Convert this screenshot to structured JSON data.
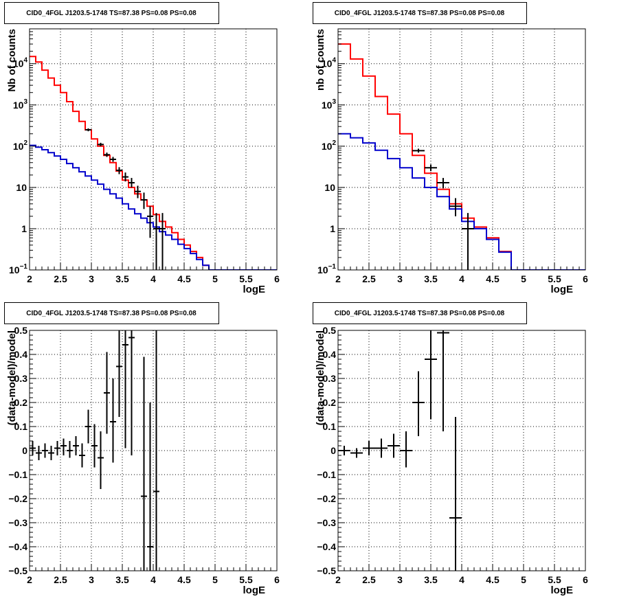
{
  "colors": {
    "model_total": "#ff0000",
    "model_component": "#0000cc",
    "data": "#000000"
  },
  "chart_data": [
    {
      "type": "line",
      "panel": "top-left",
      "title": "CID0_4FGL J1203.5-1748 TS=87.38 PS=0.08 PS=0.08",
      "xlabel": "logE",
      "ylabel": "Nb of counts",
      "log_y": true,
      "xlim": [
        2,
        6
      ],
      "ylim": [
        0.1,
        70000
      ],
      "xticks": [
        "2",
        "2.5",
        "3",
        "3.5",
        "4",
        "4.5",
        "5",
        "5.5",
        "6"
      ],
      "yticks": [
        {
          "v": 0.1,
          "base": "10",
          "exp": "−1"
        },
        {
          "v": 1,
          "base": "1",
          "exp": ""
        },
        {
          "v": 10,
          "base": "10",
          "exp": ""
        },
        {
          "v": 100,
          "base": "10",
          "exp": "2"
        },
        {
          "v": 1000,
          "base": "10",
          "exp": "3"
        },
        {
          "v": 10000,
          "base": "10",
          "exp": "4"
        }
      ],
      "grid": true,
      "series": [
        {
          "role": "model_total",
          "kind": "step",
          "bin_width": 0.1,
          "x_start": 2.0,
          "values": [
            15000,
            11000,
            7000,
            4500,
            3000,
            2000,
            1200,
            700,
            400,
            250,
            150,
            100,
            60,
            40,
            25,
            15,
            10,
            7,
            5,
            3.5,
            2.2,
            1.5,
            1.1,
            0.8,
            0.55,
            0.4,
            0.28,
            0.2,
            0.13,
            0.1,
            0.1,
            0.1,
            0.1,
            0.1,
            0.1,
            0.1,
            0.1,
            0.1,
            0.1,
            0.1
          ]
        },
        {
          "role": "model_component",
          "kind": "step",
          "bin_width": 0.1,
          "x_start": 2.0,
          "values": [
            105,
            95,
            82,
            70,
            58,
            48,
            38,
            30,
            24,
            19,
            15,
            12,
            9,
            7,
            5.5,
            4,
            3,
            2.3,
            1.8,
            1.4,
            1.1,
            0.85,
            0.7,
            0.55,
            0.42,
            0.33,
            0.25,
            0.18,
            0.13,
            0.1,
            0.1,
            0.1,
            0.1,
            0.1,
            0.1,
            0.1,
            0.1,
            0.1,
            0.1,
            0.1
          ]
        },
        {
          "role": "data",
          "kind": "points",
          "half_width": 0.05,
          "points": [
            {
              "x": 2.95,
              "y": 250,
              "lo": 230,
              "hi": 270
            },
            {
              "x": 3.15,
              "y": 110,
              "lo": 100,
              "hi": 121
            },
            {
              "x": 3.25,
              "y": 62,
              "lo": 55,
              "hi": 70
            },
            {
              "x": 3.35,
              "y": 48,
              "lo": 42,
              "hi": 55
            },
            {
              "x": 3.45,
              "y": 26,
              "lo": 21,
              "hi": 31
            },
            {
              "x": 3.55,
              "y": 18,
              "lo": 14,
              "hi": 23
            },
            {
              "x": 3.65,
              "y": 13,
              "lo": 10,
              "hi": 17
            },
            {
              "x": 3.75,
              "y": 8,
              "lo": 5.5,
              "hi": 11
            },
            {
              "x": 3.85,
              "y": 5,
              "lo": 3,
              "hi": 7.5
            },
            {
              "x": 3.95,
              "y": 2,
              "lo": 0.6,
              "hi": 3.5
            },
            {
              "x": 4.05,
              "y": 1,
              "lo": 0.1,
              "hi": 2.4
            },
            {
              "x": 4.15,
              "y": 1,
              "lo": 0.1,
              "hi": 2.4
            }
          ]
        }
      ]
    },
    {
      "type": "line",
      "panel": "top-right",
      "title": "CID0_4FGL J1203.5-1748 TS=87.38 PS=0.08 PS=0.08",
      "xlabel": "logE",
      "ylabel": "nb of counts",
      "log_y": true,
      "xlim": [
        2,
        6
      ],
      "ylim": [
        0.1,
        70000
      ],
      "xticks": [
        "2",
        "2.5",
        "3",
        "3.5",
        "4",
        "4.5",
        "5",
        "5.5",
        "6"
      ],
      "yticks": [
        {
          "v": 0.1,
          "base": "10",
          "exp": "−1"
        },
        {
          "v": 1,
          "base": "1",
          "exp": ""
        },
        {
          "v": 10,
          "base": "10",
          "exp": ""
        },
        {
          "v": 100,
          "base": "10",
          "exp": "2"
        },
        {
          "v": 1000,
          "base": "10",
          "exp": "3"
        },
        {
          "v": 10000,
          "base": "10",
          "exp": "4"
        }
      ],
      "grid": true,
      "series": [
        {
          "role": "model_total",
          "kind": "step",
          "bin_width": 0.2,
          "x_start": 2.0,
          "values": [
            30000,
            13000,
            5000,
            1600,
            600,
            200,
            60,
            22,
            9,
            4,
            1.8,
            1.1,
            0.6,
            0.28,
            0.1,
            0.1,
            0.1,
            0.1,
            0.1,
            0.1
          ]
        },
        {
          "role": "model_component",
          "kind": "step",
          "bin_width": 0.2,
          "x_start": 2.0,
          "values": [
            200,
            160,
            120,
            80,
            50,
            30,
            17,
            10,
            6,
            3,
            1.5,
            1.0,
            0.55,
            0.27,
            0.1,
            0.1,
            0.1,
            0.1,
            0.1,
            0.1
          ]
        },
        {
          "role": "data",
          "kind": "points",
          "half_width": 0.1,
          "points": [
            {
              "x": 3.3,
              "y": 78,
              "lo": 70,
              "hi": 87
            },
            {
              "x": 3.5,
              "y": 30,
              "lo": 25,
              "hi": 36
            },
            {
              "x": 3.7,
              "y": 13,
              "lo": 9.5,
              "hi": 17
            },
            {
              "x": 3.9,
              "y": 3.5,
              "lo": 2,
              "hi": 5.5
            },
            {
              "x": 4.1,
              "y": 1,
              "lo": 0.1,
              "hi": 2.4
            }
          ]
        }
      ]
    },
    {
      "type": "scatter",
      "panel": "bottom-left",
      "title": "CID0_4FGL J1203.5-1748 TS=87.38 PS=0.08 PS=0.08",
      "xlabel": "logE",
      "ylabel": "(data-model)/model",
      "log_y": false,
      "xlim": [
        2,
        6
      ],
      "ylim": [
        -0.5,
        0.5
      ],
      "xticks": [
        "2",
        "2.5",
        "3",
        "3.5",
        "4",
        "4.5",
        "5",
        "5.5",
        "6"
      ],
      "yticks": [
        {
          "v": -0.5,
          "label": "−0.5"
        },
        {
          "v": -0.4,
          "label": "−0.4"
        },
        {
          "v": -0.3,
          "label": "−0.3"
        },
        {
          "v": -0.2,
          "label": "−0.2"
        },
        {
          "v": -0.1,
          "label": "−0.1"
        },
        {
          "v": 0,
          "label": "0"
        },
        {
          "v": 0.1,
          "label": "0.1"
        },
        {
          "v": 0.2,
          "label": "0.2"
        },
        {
          "v": 0.3,
          "label": "0.3"
        },
        {
          "v": 0.4,
          "label": "0.4"
        },
        {
          "v": 0.5,
          "label": "0.5"
        }
      ],
      "grid": true,
      "series": [
        {
          "role": "data",
          "kind": "points",
          "half_width": 0.05,
          "points": [
            {
              "x": 2.05,
              "y": 0.01,
              "lo": -0.02,
              "hi": 0.04
            },
            {
              "x": 2.15,
              "y": -0.01,
              "lo": -0.04,
              "hi": 0.02
            },
            {
              "x": 2.25,
              "y": 0.0,
              "lo": -0.03,
              "hi": 0.03
            },
            {
              "x": 2.35,
              "y": -0.01,
              "lo": -0.04,
              "hi": 0.02
            },
            {
              "x": 2.45,
              "y": 0.01,
              "lo": -0.02,
              "hi": 0.04
            },
            {
              "x": 2.55,
              "y": 0.02,
              "lo": -0.02,
              "hi": 0.05
            },
            {
              "x": 2.65,
              "y": 0.0,
              "lo": -0.03,
              "hi": 0.04
            },
            {
              "x": 2.75,
              "y": 0.02,
              "lo": -0.02,
              "hi": 0.06
            },
            {
              "x": 2.85,
              "y": -0.02,
              "lo": -0.07,
              "hi": 0.03
            },
            {
              "x": 2.95,
              "y": 0.1,
              "lo": 0.03,
              "hi": 0.17
            },
            {
              "x": 3.05,
              "y": 0.02,
              "lo": -0.07,
              "hi": 0.11
            },
            {
              "x": 3.15,
              "y": -0.03,
              "lo": -0.16,
              "hi": 0.08
            },
            {
              "x": 3.25,
              "y": 0.24,
              "lo": 0.07,
              "hi": 0.41
            },
            {
              "x": 3.35,
              "y": 0.12,
              "lo": -0.05,
              "hi": 0.3
            },
            {
              "x": 3.45,
              "y": 0.35,
              "lo": 0.14,
              "hi": 0.57
            },
            {
              "x": 3.55,
              "y": 0.44,
              "lo": 0.01,
              "hi": 0.86
            },
            {
              "x": 3.65,
              "y": 0.47,
              "lo": -0.02,
              "hi": 0.96
            },
            {
              "x": 3.85,
              "y": -0.19,
              "lo": -0.8,
              "hi": 0.39
            },
            {
              "x": 3.95,
              "y": -0.4,
              "lo": -1.0,
              "hi": 0.2
            },
            {
              "x": 4.05,
              "y": -0.17,
              "lo": -1.0,
              "hi": 0.62
            }
          ]
        }
      ]
    },
    {
      "type": "scatter",
      "panel": "bottom-right",
      "title": "CID0_4FGL J1203.5-1748 TS=87.38 PS=0.08 PS=0.08",
      "xlabel": "logE",
      "ylabel": "(data-model)/model",
      "log_y": false,
      "xlim": [
        2,
        6
      ],
      "ylim": [
        -0.5,
        0.5
      ],
      "xticks": [
        "2",
        "2.5",
        "3",
        "3.5",
        "4",
        "4.5",
        "5",
        "5.5",
        "6"
      ],
      "yticks": [
        {
          "v": -0.5,
          "label": "−0.5"
        },
        {
          "v": -0.4,
          "label": "−0.4"
        },
        {
          "v": -0.3,
          "label": "−0.3"
        },
        {
          "v": -0.2,
          "label": "−0.2"
        },
        {
          "v": -0.1,
          "label": "−0.1"
        },
        {
          "v": 0,
          "label": "0"
        },
        {
          "v": 0.1,
          "label": "0.1"
        },
        {
          "v": 0.2,
          "label": "0.2"
        },
        {
          "v": 0.3,
          "label": "0.3"
        },
        {
          "v": 0.4,
          "label": "0.4"
        },
        {
          "v": 0.5,
          "label": "0.5"
        }
      ],
      "grid": true,
      "series": [
        {
          "role": "data",
          "kind": "points",
          "half_width": 0.1,
          "points": [
            {
              "x": 2.1,
              "y": 0.0,
              "lo": -0.02,
              "hi": 0.02
            },
            {
              "x": 2.3,
              "y": -0.01,
              "lo": -0.03,
              "hi": 0.01
            },
            {
              "x": 2.5,
              "y": 0.01,
              "lo": -0.02,
              "hi": 0.04
            },
            {
              "x": 2.7,
              "y": 0.01,
              "lo": -0.03,
              "hi": 0.05
            },
            {
              "x": 2.9,
              "y": 0.02,
              "lo": -0.03,
              "hi": 0.07
            },
            {
              "x": 3.1,
              "y": 0.0,
              "lo": -0.07,
              "hi": 0.08
            },
            {
              "x": 3.3,
              "y": 0.2,
              "lo": 0.06,
              "hi": 0.33
            },
            {
              "x": 3.5,
              "y": 0.38,
              "lo": 0.13,
              "hi": 0.63
            },
            {
              "x": 3.7,
              "y": 0.49,
              "lo": 0.08,
              "hi": 0.9
            },
            {
              "x": 3.9,
              "y": -0.28,
              "lo": -0.7,
              "hi": 0.14
            }
          ]
        }
      ]
    }
  ]
}
